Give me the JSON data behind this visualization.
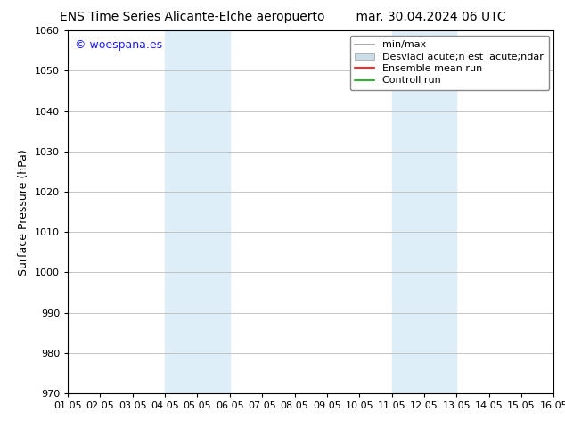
{
  "title_left": "ENS Time Series Alicante-Elche aeropuerto",
  "title_right": "mar. 30.04.2024 06 UTC",
  "ylabel": "Surface Pressure (hPa)",
  "ylim": [
    970,
    1060
  ],
  "yticks": [
    970,
    980,
    990,
    1000,
    1010,
    1020,
    1030,
    1040,
    1050,
    1060
  ],
  "xtick_labels": [
    "01.05",
    "02.05",
    "03.05",
    "04.05",
    "05.05",
    "06.05",
    "07.05",
    "08.05",
    "09.05",
    "10.05",
    "11.05",
    "12.05",
    "13.05",
    "14.05",
    "15.05",
    "16.05"
  ],
  "watermark": "© woespana.es",
  "watermark_color": "#1a1aff",
  "shaded_bands": [
    {
      "xmin": 3,
      "xmax": 5,
      "color": "#deeef8"
    },
    {
      "xmin": 10,
      "xmax": 12,
      "color": "#deeef8"
    }
  ],
  "legend_labels": [
    "min/max",
    "Desviaci acute;n est  acute;ndar",
    "Ensemble mean run",
    "Controll run"
  ],
  "legend_colors": [
    "#999999",
    "#ccdde8",
    "#ff0000",
    "#00aa00"
  ],
  "background_color": "#ffffff",
  "plot_bg_color": "#ffffff",
  "grid_color": "#bbbbbb",
  "title_fontsize": 10,
  "ylabel_fontsize": 9,
  "tick_fontsize": 8,
  "legend_fontsize": 8,
  "watermark_fontsize": 9
}
